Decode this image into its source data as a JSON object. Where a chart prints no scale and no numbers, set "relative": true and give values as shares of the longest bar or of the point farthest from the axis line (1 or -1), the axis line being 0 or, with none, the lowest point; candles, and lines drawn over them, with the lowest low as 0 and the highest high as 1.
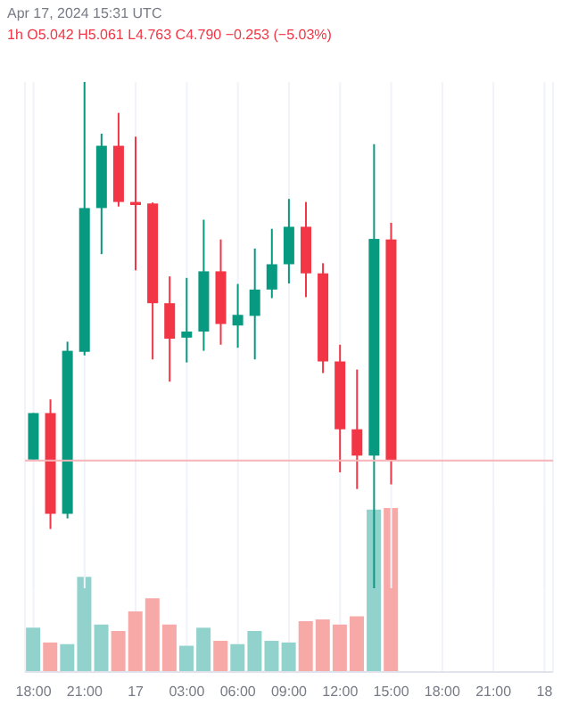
{
  "chart_data": [
    {
      "type": "candlestick",
      "relative": true,
      "grid": "x",
      "tick_labels": false,
      "annotations": [
        "Apr 17, 2024 15:31 UTC",
        "1h O5.042 H5.061 L4.763 C4.790 −0.253 (−5.03%)"
      ],
      "categories": [
        null,
        null,
        null,
        null,
        null,
        null,
        null,
        null,
        null,
        null,
        null,
        null,
        null,
        null,
        null,
        null,
        null,
        null,
        null,
        null,
        null,
        null,
        null,
        null,
        null,
        null,
        null,
        null,
        null,
        null,
        null
      ],
      "ref_lines": [
        {
          "axis": "y",
          "value": 0.252,
          "color": "#f7b4b8"
        }
      ],
      "ohlc": [
        [
          0.254,
          0.346,
          0.254,
          0.346
        ],
        [
          0.346,
          0.373,
          0.117,
          0.147
        ],
        [
          0.147,
          0.487,
          0.138,
          0.469
        ],
        [
          0.467,
          1,
          0.46,
          0.751
        ],
        [
          0.751,
          0.898,
          0.66,
          0.874
        ],
        [
          0.874,
          0.939,
          0.754,
          0.763
        ],
        [
          0.763,
          0.892,
          0.628,
          0.757
        ],
        [
          0.76,
          0.762,
          0.452,
          0.563
        ],
        [
          0.563,
          0.616,
          0.408,
          0.493
        ],
        [
          0.495,
          0.613,
          0.446,
          0.507
        ],
        [
          0.507,
          0.728,
          0.469,
          0.626
        ],
        [
          0.626,
          0.689,
          0.481,
          0.522
        ],
        [
          0.519,
          0.601,
          0.475,
          0.54
        ],
        [
          0.538,
          0.671,
          0.452,
          0.59
        ],
        [
          0.59,
          0.71,
          0.573,
          0.64
        ],
        [
          0.64,
          0.769,
          0.602,
          0.714
        ],
        [
          0.714,
          0.763,
          0.575,
          0.622
        ],
        [
          0.622,
          0.642,
          0.425,
          0.448
        ],
        [
          0.448,
          0.481,
          0.229,
          0.314
        ],
        [
          0.314,
          0.432,
          0.196,
          0.262
        ],
        [
          0.262,
          0.877,
          0,
          0.69
        ],
        [
          0.689,
          0.722,
          0.205,
          0.252
        ],
        null,
        null,
        null,
        null,
        null,
        null,
        null,
        null,
        null
      ],
      "colors": [
        "#089981",
        "#f23645",
        "#089981",
        "#089981",
        "#089981",
        "#f23645",
        "#f23645",
        "#f23645",
        "#f23645",
        "#089981",
        "#089981",
        "#f23645",
        "#089981",
        "#089981",
        "#089981",
        "#089981",
        "#f23645",
        "#f23645",
        "#f23645",
        "#f23645",
        "#089981",
        "#f23645",
        null,
        null,
        null,
        null,
        null,
        null,
        null,
        null,
        null
      ]
    },
    {
      "type": "bar",
      "relative": true,
      "grid": "x",
      "categories": [
        "18:00",
        null,
        null,
        "21:00",
        null,
        null,
        "17",
        null,
        null,
        "03:00",
        null,
        null,
        "06:00",
        null,
        null,
        "09:00",
        null,
        null,
        "12:00",
        null,
        null,
        "15:00",
        null,
        null,
        "18:00",
        null,
        null,
        "21:00",
        null,
        null,
        "18"
      ],
      "values": [
        0.27,
        0.18,
        0.17,
        0.58,
        0.29,
        0.25,
        0.37,
        0.45,
        0.29,
        0.16,
        0.27,
        0.19,
        0.17,
        0.25,
        0.19,
        0.18,
        0.31,
        0.32,
        0.29,
        0.34,
        0.99,
        1,
        null,
        null,
        null,
        null,
        null,
        null,
        null,
        null,
        null
      ],
      "colors": [
        "#92d2cc",
        "#f7a9a7",
        "#92d2cc",
        "#92d2cc",
        "#92d2cc",
        "#f7a9a7",
        "#f7a9a7",
        "#f7a9a7",
        "#f7a9a7",
        "#92d2cc",
        "#92d2cc",
        "#f7a9a7",
        "#92d2cc",
        "#92d2cc",
        "#92d2cc",
        "#92d2cc",
        "#f7a9a7",
        "#f7a9a7",
        "#f7a9a7",
        "#f7a9a7",
        "#92d2cc",
        "#f7a9a7",
        null,
        null,
        null,
        null,
        null,
        null,
        null,
        null,
        null
      ]
    }
  ]
}
